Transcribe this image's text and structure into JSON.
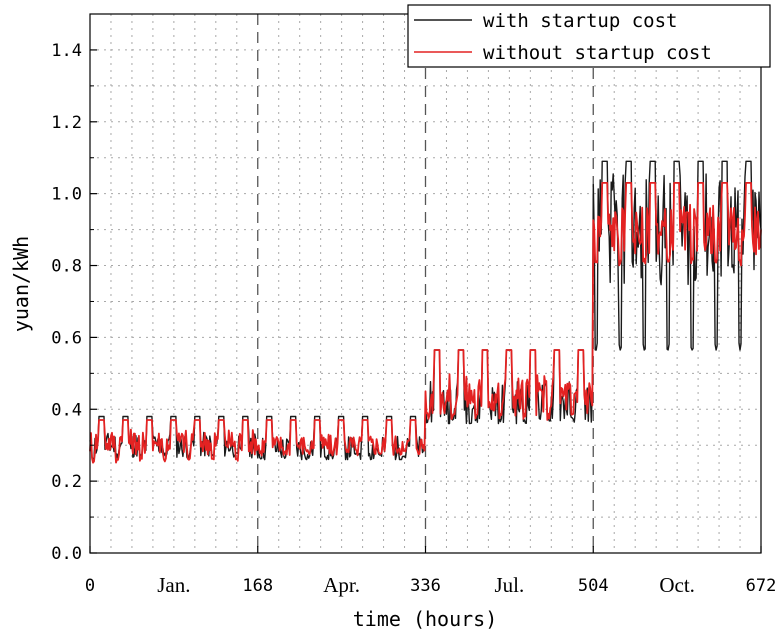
{
  "chart_data": {
    "type": "line",
    "title": "",
    "xlabel": "time (hours)",
    "ylabel": "yuan/kWh",
    "xlim": [
      0,
      672
    ],
    "ylim": [
      0,
      1.5
    ],
    "x_ticks": [
      0,
      168,
      336,
      504,
      672
    ],
    "x_tick_labels": [
      "0",
      "168",
      "336",
      "504",
      "672"
    ],
    "y_ticks": [
      0.0,
      0.2,
      0.4,
      0.6,
      0.8,
      1.0,
      1.2,
      1.4
    ],
    "y_tick_labels": [
      "0.0",
      "0.2",
      "0.4",
      "0.6",
      "0.8",
      "1.0",
      "1.2",
      "1.4"
    ],
    "season_labels": [
      {
        "text": "Jan.",
        "x": 84
      },
      {
        "text": "Apr.",
        "x": 252
      },
      {
        "text": "Jul.",
        "x": 420
      },
      {
        "text": "Oct.",
        "x": 588
      }
    ],
    "season_dividers": [
      168,
      336,
      504
    ],
    "grid": true,
    "legend_position": "top-right",
    "series": [
      {
        "name": "with startup cost",
        "color": "#1a1a1a",
        "segments": [
          {
            "x0": 0,
            "x1": 168,
            "low": 0.26,
            "high": 0.38,
            "base": 0.3
          },
          {
            "x0": 168,
            "x1": 336,
            "low": 0.26,
            "high": 0.38,
            "base": 0.29
          },
          {
            "x0": 336,
            "x1": 504,
            "low": 0.36,
            "high": 0.565,
            "base": 0.42
          },
          {
            "x0": 504,
            "x1": 672,
            "low": 0.565,
            "high": 1.09,
            "base": 0.9
          }
        ]
      },
      {
        "name": "without startup cost",
        "color": "#e32222",
        "segments": [
          {
            "x0": 0,
            "x1": 168,
            "low": 0.25,
            "high": 0.37,
            "base": 0.31
          },
          {
            "x0": 168,
            "x1": 336,
            "low": 0.27,
            "high": 0.37,
            "base": 0.3
          },
          {
            "x0": 336,
            "x1": 504,
            "low": 0.37,
            "high": 0.565,
            "base": 0.44
          },
          {
            "x0": 504,
            "x1": 672,
            "low": 0.8,
            "high": 1.03,
            "base": 0.9
          }
        ]
      }
    ]
  }
}
